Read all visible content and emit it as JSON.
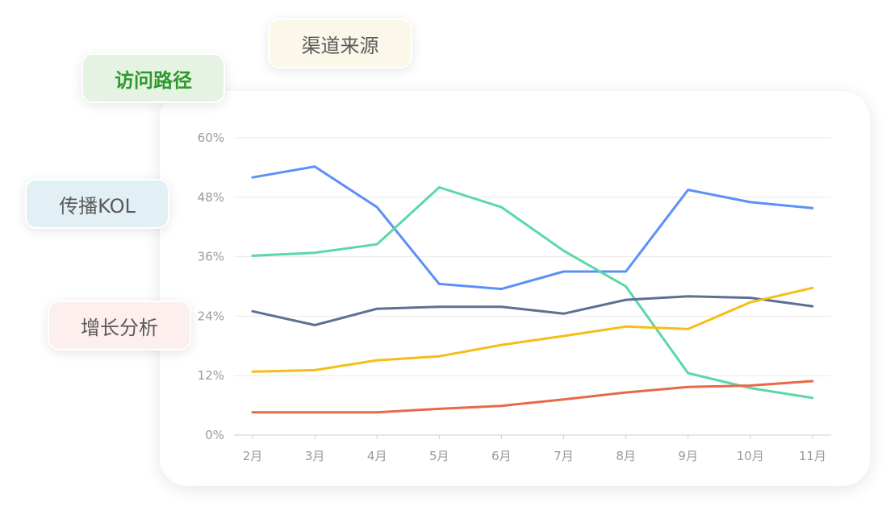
{
  "tags": {
    "channel_source": "渠道来源",
    "visit_path": "访问路径",
    "spread_kol": "传播KOL",
    "growth_analysis": "增长分析"
  },
  "chart_data": {
    "type": "line",
    "categories": [
      "2月",
      "3月",
      "4月",
      "5月",
      "6月",
      "7月",
      "8月",
      "9月",
      "10月",
      "11月"
    ],
    "y_ticks": [
      "0%",
      "12%",
      "24%",
      "36%",
      "48%",
      "60%"
    ],
    "ylim": [
      0,
      60
    ],
    "grid": true,
    "legend": "none",
    "series": [
      {
        "color": "#5b8ff9",
        "values": [
          52.0,
          54.2,
          46.0,
          30.5,
          29.5,
          33.0,
          33.0,
          49.5,
          47.0,
          45.8
        ]
      },
      {
        "color": "#5ad8a6",
        "values": [
          36.2,
          36.8,
          38.5,
          50.0,
          46.0,
          37.2,
          30.0,
          12.5,
          9.5,
          7.5
        ]
      },
      {
        "color": "#5d7092",
        "values": [
          25.0,
          22.2,
          25.5,
          25.9,
          25.9,
          24.5,
          27.3,
          28.0,
          27.7,
          26.0
        ]
      },
      {
        "color": "#f6bd16",
        "values": [
          12.8,
          13.1,
          15.1,
          15.9,
          18.2,
          20.0,
          21.9,
          21.4,
          26.8,
          29.7
        ]
      },
      {
        "color": "#e8684a",
        "values": [
          4.6,
          4.6,
          4.6,
          5.3,
          5.9,
          7.2,
          8.6,
          9.7,
          10.0,
          10.9
        ]
      }
    ]
  }
}
